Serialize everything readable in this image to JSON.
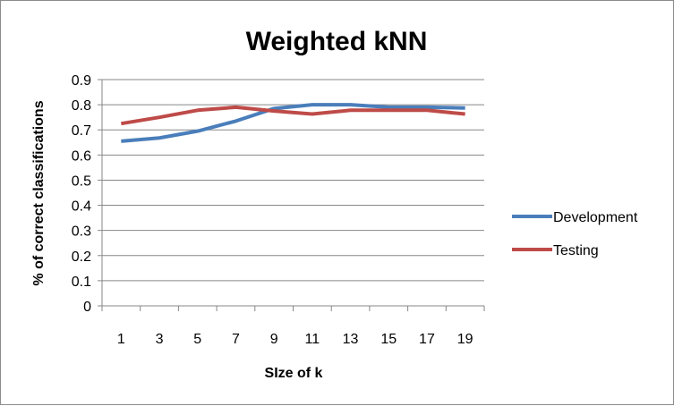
{
  "chart_data": {
    "type": "line",
    "title": "Weighted kNN",
    "xlabel": "SIze of k",
    "ylabel": "% of correct classifications",
    "x": [
      1,
      3,
      5,
      7,
      9,
      11,
      13,
      15,
      17,
      19
    ],
    "x_tick_labels": [
      "1",
      "3",
      "5",
      "7",
      "9",
      "11",
      "13",
      "15",
      "17",
      "19"
    ],
    "y_tick_labels": [
      "0",
      "0.1",
      "0.2",
      "0.3",
      "0.4",
      "0.5",
      "0.6",
      "0.7",
      "0.8",
      "0.9"
    ],
    "ylim": [
      0,
      0.9
    ],
    "grid": true,
    "legend_position": "right",
    "series": [
      {
        "name": "Development",
        "color": "#4a7ebb",
        "values": [
          0.655,
          0.668,
          0.695,
          0.735,
          0.785,
          0.8,
          0.8,
          0.79,
          0.79,
          0.787
        ]
      },
      {
        "name": "Testing",
        "color": "#be4b48",
        "values": [
          0.725,
          0.75,
          0.778,
          0.79,
          0.775,
          0.763,
          0.778,
          0.778,
          0.778,
          0.763
        ]
      }
    ]
  }
}
